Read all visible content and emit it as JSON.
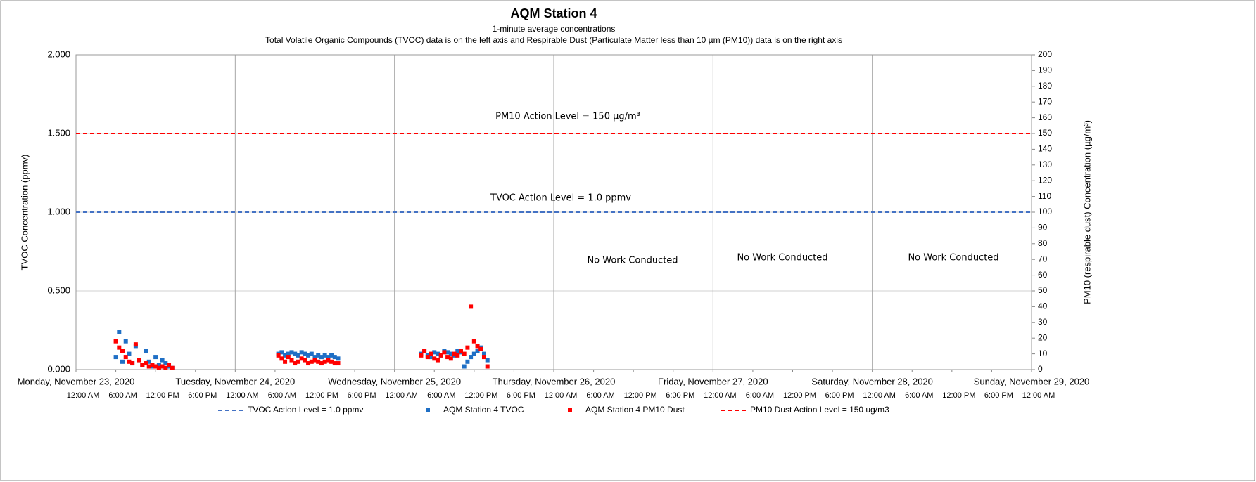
{
  "chart_data": {
    "type": "scatter",
    "title": "AQM Station 4",
    "subtitle": [
      "1-minute average concentrations",
      "Total Volatile Organic Compounds (TVOC) data is on the left axis and Respirable Dust (Particulate Matter less than 10 µm (PM10)) data is on the right axis"
    ],
    "y_label": "TVOC Concentration (ppmv)",
    "y2_label": "PM10 (respirable dust) Concentration (µg/m³)",
    "annotations": [
      "PM10 Action Level = 150 µg/m³",
      "TVOC Action Level = 1.0 ppmv",
      "No Work Conducted",
      "No Work Conducted",
      "No Work Conducted"
    ],
    "xlim": [
      "2020-11-23T00:00",
      "2020-11-29T00:00"
    ],
    "xticks_major": [
      {
        "value": "2020-11-23T00:00",
        "label": "Monday, November 23, 2020"
      },
      {
        "value": "2020-11-24T00:00",
        "label": "Tuesday, November 24, 2020"
      },
      {
        "value": "2020-11-25T00:00",
        "label": "Wednesday, November 25, 2020"
      },
      {
        "value": "2020-11-26T00:00",
        "label": "Thursday, November 26, 2020"
      },
      {
        "value": "2020-11-27T00:00",
        "label": "Friday, November 27, 2020"
      },
      {
        "value": "2020-11-28T00:00",
        "label": "Saturday, November 28, 2020"
      },
      {
        "value": "2020-11-29T00:00",
        "label": "Sunday, November 29, 2020"
      }
    ],
    "xticks": [
      {
        "value": "2020-11-23T00:00",
        "label": "12:00 AM"
      },
      {
        "value": "2020-11-23T06:00",
        "label": "6:00 AM"
      },
      {
        "value": "2020-11-23T12:00",
        "label": "12:00 PM"
      },
      {
        "value": "2020-11-23T18:00",
        "label": "6:00 PM"
      },
      {
        "value": "2020-11-24T00:00",
        "label": "12:00 AM"
      },
      {
        "value": "2020-11-24T06:00",
        "label": "6:00 AM"
      },
      {
        "value": "2020-11-24T12:00",
        "label": "12:00 PM"
      },
      {
        "value": "2020-11-24T18:00",
        "label": "6:00 PM"
      },
      {
        "value": "2020-11-25T00:00",
        "label": "12:00 AM"
      },
      {
        "value": "2020-11-25T06:00",
        "label": "6:00 AM"
      },
      {
        "value": "2020-11-25T12:00",
        "label": "12:00 PM"
      },
      {
        "value": "2020-11-25T18:00",
        "label": "6:00 PM"
      },
      {
        "value": "2020-11-26T00:00",
        "label": "12:00 AM"
      },
      {
        "value": "2020-11-26T06:00",
        "label": "6:00 AM"
      },
      {
        "value": "2020-11-26T12:00",
        "label": "12:00 PM"
      },
      {
        "value": "2020-11-26T18:00",
        "label": "6:00 PM"
      },
      {
        "value": "2020-11-27T00:00",
        "label": "12:00 AM"
      },
      {
        "value": "2020-11-27T06:00",
        "label": "6:00 AM"
      },
      {
        "value": "2020-11-27T12:00",
        "label": "12:00 PM"
      },
      {
        "value": "2020-11-27T18:00",
        "label": "6:00 PM"
      },
      {
        "value": "2020-11-28T00:00",
        "label": "12:00 AM"
      },
      {
        "value": "2020-11-28T06:00",
        "label": "6:00 AM"
      },
      {
        "value": "2020-11-28T12:00",
        "label": "12:00 PM"
      },
      {
        "value": "2020-11-28T18:00",
        "label": "6:00 PM"
      },
      {
        "value": "2020-11-29T00:00",
        "label": "12:00 AM"
      }
    ],
    "ylim": [
      0,
      2
    ],
    "yticks": [
      {
        "value": 0,
        "label": "0.000"
      },
      {
        "value": 0.5,
        "label": "0.500"
      },
      {
        "value": 1,
        "label": "1.000"
      },
      {
        "value": 1.5,
        "label": "1.500"
      },
      {
        "value": 2,
        "label": "2.000"
      }
    ],
    "y2lim": [
      0,
      200
    ],
    "y2ticks": [
      0,
      10,
      20,
      30,
      40,
      50,
      60,
      70,
      80,
      90,
      100,
      110,
      120,
      130,
      140,
      150,
      160,
      170,
      180,
      190,
      200
    ],
    "grid": true,
    "legend": "bottom",
    "reference_lines": [
      {
        "name": "TVOC Action Level = 1.0 ppmv",
        "color": "#4472c4",
        "value": 1.0,
        "axis": "y"
      },
      {
        "name": "PM10 Dust Action Level = 150 ug/m3",
        "color": "#ff0000",
        "value": 150,
        "axis": "y2"
      }
    ],
    "x": [
      "2020-11-23T06:00",
      "2020-11-23T06:30",
      "2020-11-23T07:00",
      "2020-11-23T07:30",
      "2020-11-23T08:00",
      "2020-11-23T08:30",
      "2020-11-23T09:00",
      "2020-11-23T09:30",
      "2020-11-23T10:00",
      "2020-11-23T10:30",
      "2020-11-23T11:00",
      "2020-11-23T11:30",
      "2020-11-23T12:00",
      "2020-11-23T12:30",
      "2020-11-23T13:00",
      "2020-11-23T13:30",
      "2020-11-23T14:00",
      "2020-11-23T14:30",
      "2020-11-24T06:30",
      "2020-11-24T07:00",
      "2020-11-24T07:30",
      "2020-11-24T08:00",
      "2020-11-24T08:30",
      "2020-11-24T09:00",
      "2020-11-24T09:30",
      "2020-11-24T10:00",
      "2020-11-24T10:30",
      "2020-11-24T11:00",
      "2020-11-24T11:30",
      "2020-11-24T12:00",
      "2020-11-24T12:30",
      "2020-11-24T13:00",
      "2020-11-24T13:30",
      "2020-11-24T14:00",
      "2020-11-24T14:30",
      "2020-11-24T15:00",
      "2020-11-24T15:30",
      "2020-11-25T04:00",
      "2020-11-25T04:30",
      "2020-11-25T05:00",
      "2020-11-25T05:30",
      "2020-11-25T06:00",
      "2020-11-25T06:30",
      "2020-11-25T07:00",
      "2020-11-25T07:30",
      "2020-11-25T08:00",
      "2020-11-25T08:30",
      "2020-11-25T09:00",
      "2020-11-25T09:30",
      "2020-11-25T10:00",
      "2020-11-25T10:30",
      "2020-11-25T11:00",
      "2020-11-25T11:30",
      "2020-11-25T12:00",
      "2020-11-25T12:30",
      "2020-11-25T13:00",
      "2020-11-25T13:30",
      "2020-11-25T14:00"
    ],
    "series": [
      {
        "name": "AQM Station 4 TVOC",
        "color": "#1f6fc5",
        "axis": "y",
        "values": [
          0.08,
          0.24,
          0.05,
          0.18,
          0.1,
          0.04,
          0.15,
          0.06,
          0.03,
          0.12,
          0.05,
          0.02,
          0.08,
          0.03,
          0.06,
          0.04,
          0.02,
          0.01,
          0.1,
          0.11,
          0.09,
          0.1,
          0.11,
          0.1,
          0.09,
          0.11,
          0.1,
          0.09,
          0.1,
          0.08,
          0.09,
          0.08,
          0.09,
          0.08,
          0.09,
          0.08,
          0.07,
          0.1,
          0.12,
          0.09,
          0.08,
          0.11,
          0.1,
          0.09,
          0.12,
          0.11,
          0.1,
          0.09,
          0.12,
          0.11,
          0.02,
          0.05,
          0.08,
          0.1,
          0.12,
          0.14,
          0.1,
          0.06
        ]
      },
      {
        "name": "AQM Station 4 PM10 Dust",
        "color": "#ff0000",
        "axis": "y2",
        "values": [
          18,
          14,
          12,
          8,
          5,
          4,
          16,
          6,
          3,
          4,
          2,
          3,
          2,
          1,
          2,
          1,
          3,
          1,
          9,
          7,
          5,
          8,
          6,
          4,
          5,
          7,
          6,
          4,
          5,
          6,
          5,
          4,
          5,
          6,
          5,
          4,
          4,
          9,
          12,
          8,
          10,
          7,
          6,
          9,
          11,
          8,
          7,
          10,
          9,
          12,
          10,
          14,
          40,
          18,
          15,
          13,
          8,
          2
        ]
      }
    ]
  }
}
